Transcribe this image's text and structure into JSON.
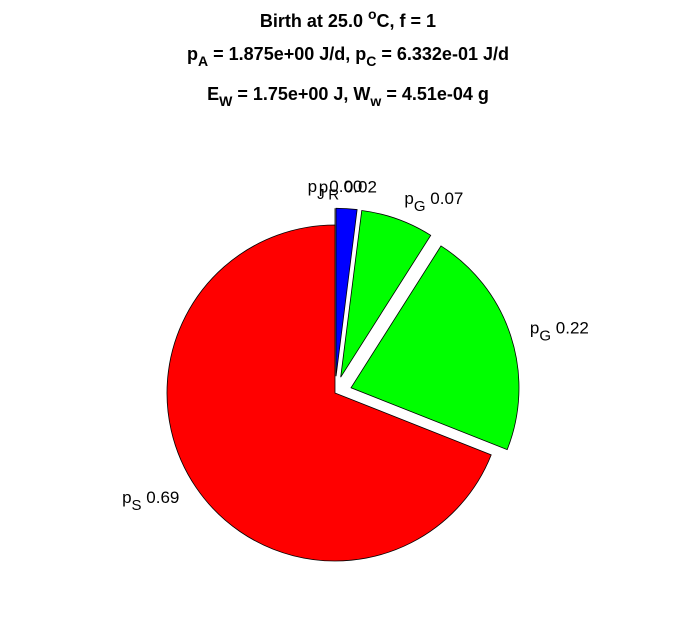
{
  "chart_data": {
    "type": "pie",
    "title": [
      [
        {
          "t": "Birth at 25.0 "
        },
        {
          "t": "o",
          "sup": true
        },
        {
          "t": "C, f = 1"
        }
      ],
      [
        {
          "t": "p"
        },
        {
          "t": "A",
          "sub": true
        },
        {
          "t": " = 1.875e+00 J/d, p"
        },
        {
          "t": "C",
          "sub": true
        },
        {
          "t": " = 6.332e-01 J/d"
        }
      ],
      [
        {
          "t": "E"
        },
        {
          "t": "W",
          "sub": true
        },
        {
          "t": " = 1.75e+00 J, W"
        },
        {
          "t": "w",
          "sub": true
        },
        {
          "t": " = 4.51e-04 g"
        }
      ]
    ],
    "categories": [
      {
        "text": "p",
        "sub": "J"
      },
      {
        "text": "p",
        "sub": "R"
      },
      {
        "text": "p",
        "sub": "G"
      },
      {
        "text": "p",
        "sub": "G"
      },
      {
        "text": "p",
        "sub": "S"
      }
    ],
    "values": [
      0.0,
      0.02,
      0.07,
      0.22,
      0.69
    ],
    "value_labels": [
      "0.00",
      "0.02",
      "0.07",
      "0.22",
      "0.69"
    ],
    "colors": [
      "#0000ff",
      "#0000ff",
      "#00ff00",
      "#00ff00",
      "#ff0000"
    ],
    "explode": [
      1,
      1,
      1,
      1,
      0
    ]
  }
}
